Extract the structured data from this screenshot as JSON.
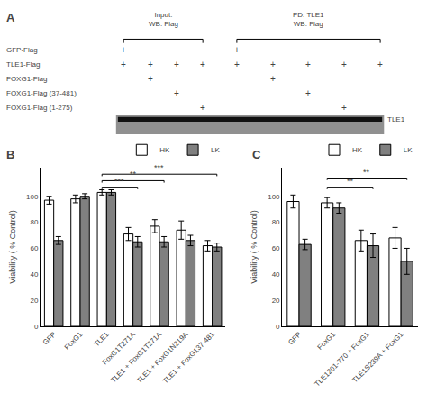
{
  "chart_data": [
    {
      "type": "table",
      "label": "A",
      "row_labels": [
        "GFP-Flag",
        "TLE1-Flag",
        "FOXG1-Flag",
        "FOXG1-Flag (37-481)",
        "FOXG1-Flag (1-275)"
      ],
      "column_groups": [
        {
          "header": "Input:\nWB: Flag",
          "rows": [
            [
              "+",
              null,
              null,
              null
            ],
            [
              "+",
              "+",
              "+",
              "+"
            ],
            [
              null,
              "+",
              null,
              null
            ],
            [
              null,
              null,
              "+",
              null
            ],
            [
              null,
              null,
              null,
              "+"
            ]
          ]
        },
        {
          "header": "PD: TLE1\nWB: Flag",
          "rows": [
            [
              "+",
              null,
              null,
              null,
              null
            ],
            [
              "+",
              "+",
              "+",
              "+",
              "+"
            ],
            [
              null,
              "+",
              null,
              null,
              null
            ],
            [
              null,
              null,
              "+",
              null,
              null
            ],
            [
              null,
              null,
              null,
              "+",
              null
            ]
          ]
        }
      ],
      "annotations": [
        "TLE1"
      ]
    },
    {
      "type": "bar",
      "label": "B",
      "categories": [
        "GFP",
        "FoxG1",
        "TLE1",
        "FoxG1T271A",
        "TLE1 + FoxG1T271A",
        "TLE1 + FoxG1N219A",
        "TLE1 + FoxG137-481"
      ],
      "series": [
        {
          "name": "HK",
          "color": "#ffffff",
          "values": [
            97,
            98,
            103,
            71,
            77,
            74,
            62
          ],
          "errors": [
            3,
            3,
            2,
            5,
            5,
            7,
            4
          ]
        },
        {
          "name": "LK",
          "color": "#808080",
          "values": [
            66,
            100,
            103,
            65,
            65,
            66,
            61
          ],
          "errors": [
            3,
            2,
            2,
            4,
            4,
            4,
            3
          ]
        }
      ],
      "edge_color": "#000000",
      "ylabel": "Viability ( % Control)",
      "ylim": [
        0,
        122
      ],
      "yticks": [
        0,
        20,
        40,
        60,
        80,
        100
      ],
      "grid": false,
      "legend": "upper right",
      "significance": [
        {
          "from": "TLE1",
          "to": "FoxG1T271A",
          "label": "***",
          "height": 107
        },
        {
          "from": "TLE1",
          "to": "TLE1 + FoxG1T271A",
          "label": "**",
          "height": 112
        },
        {
          "from": "TLE1",
          "to": "TLE1 + FoxG137-481",
          "label": "***",
          "height": 117
        }
      ]
    },
    {
      "type": "bar",
      "label": "C",
      "categories": [
        "GFP",
        "FoxG1",
        "TLE1201-770 + FoxG1",
        "TLE1S239A + FoxG1"
      ],
      "series": [
        {
          "name": "HK",
          "color": "#ffffff",
          "values": [
            96,
            95,
            66,
            68
          ],
          "errors": [
            5,
            4,
            8,
            8
          ]
        },
        {
          "name": "LK",
          "color": "#808080",
          "values": [
            63,
            91,
            62,
            50
          ],
          "errors": [
            4,
            4,
            9,
            10
          ]
        }
      ],
      "edge_color": "#000000",
      "ylabel": "Viability ( % Control)",
      "ylim": [
        0,
        122
      ],
      "yticks": [
        0,
        20,
        40,
        60,
        80,
        100
      ],
      "grid": false,
      "legend": "upper right",
      "significance": [
        {
          "from": "FoxG1",
          "to": "TLE1201-770 + FoxG1",
          "label": "**",
          "height": 107
        },
        {
          "from": "FoxG1",
          "to": "TLE1S239A + FoxG1",
          "label": "**",
          "height": 114
        }
      ]
    }
  ]
}
